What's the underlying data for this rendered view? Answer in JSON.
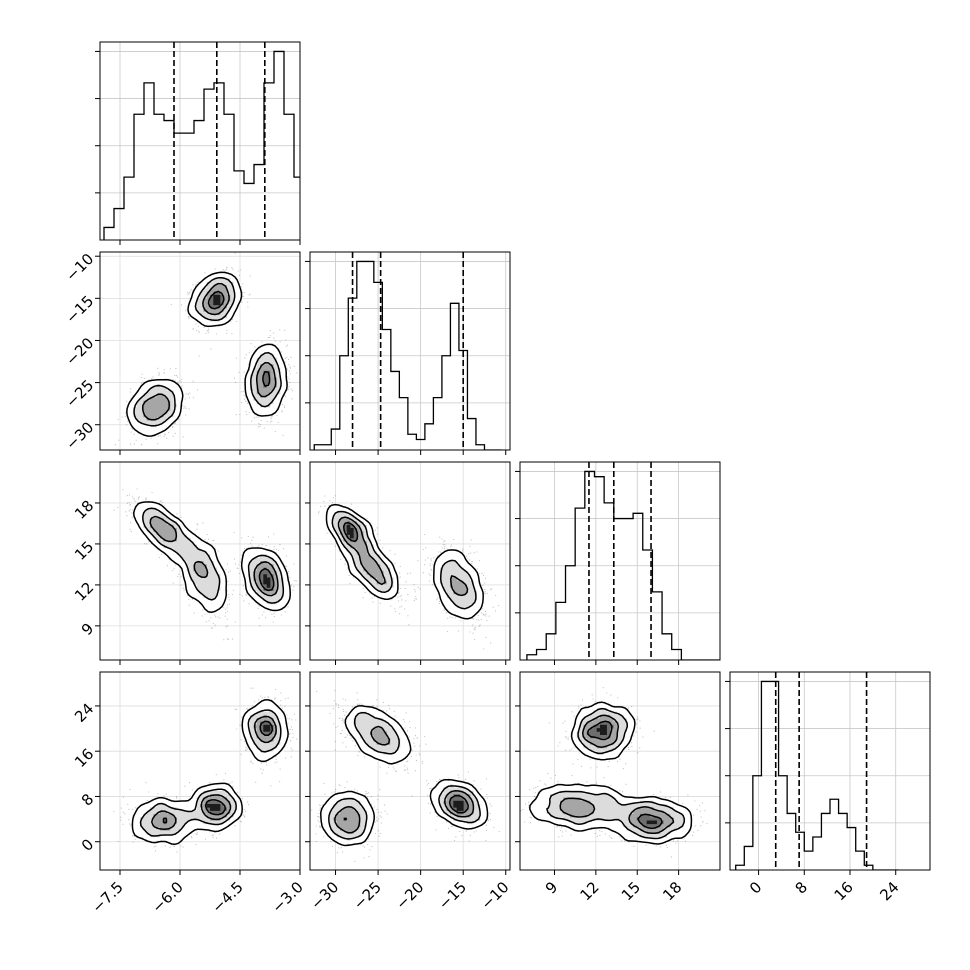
{
  "chart_data": {
    "type": "corner",
    "variables": [
      {
        "range": [
          -8,
          -3
        ],
        "ticks": [
          -7.5,
          -6.0,
          -4.5,
          -3.0
        ],
        "tick_labels": [
          "−7.5",
          "−6.0",
          "−4.5",
          "−3.0"
        ],
        "quantiles": [
          -6.15,
          -5.08,
          -3.88
        ]
      },
      {
        "range": [
          -33,
          -9.5
        ],
        "ticks": [
          -30,
          -25,
          -20,
          -15,
          -10
        ],
        "tick_labels": [
          "−30",
          "−25",
          "−20",
          "−15",
          "−10"
        ],
        "quantiles": [
          -28.0,
          -24.7,
          -15.0
        ]
      },
      {
        "range": [
          6.5,
          21
        ],
        "ticks": [
          9,
          12,
          15,
          18
        ],
        "tick_labels": [
          "9",
          "12",
          "15",
          "18"
        ],
        "quantiles": [
          11.5,
          13.3,
          16.0
        ]
      },
      {
        "range": [
          -5,
          30
        ],
        "ticks": [
          0,
          8,
          16,
          24
        ],
        "tick_labels": [
          "0",
          "8",
          "16",
          "24"
        ],
        "quantiles": [
          3.0,
          7.1,
          18.9
        ]
      }
    ],
    "histograms": [
      {
        "edges_start": -7.9,
        "bin_width": 0.25,
        "heights": [
          2,
          5,
          10,
          20,
          25,
          20,
          19,
          17,
          17,
          19,
          24,
          25,
          20,
          11,
          9,
          12,
          25,
          30,
          20,
          10,
          3,
          0
        ]
      },
      {
        "edges_start": -32.5,
        "bin_width": 1.0,
        "heights": [
          1,
          1,
          4,
          18,
          29,
          36,
          36,
          32,
          23,
          15,
          10,
          3,
          2,
          5,
          10,
          18,
          28,
          19,
          6,
          1,
          0,
          0
        ]
      },
      {
        "edges_start": 7.0,
        "bin_width": 0.7,
        "heights": [
          1,
          2,
          5,
          11,
          18,
          29,
          36,
          35,
          30,
          27,
          27,
          28,
          21,
          13,
          5,
          2,
          0,
          0,
          0,
          0
        ]
      },
      {
        "edges_start": -4.0,
        "bin_width": 1.5,
        "heights": [
          1,
          5,
          20,
          40,
          40,
          20,
          12,
          8,
          4,
          7,
          12,
          15,
          12,
          9,
          4,
          1,
          0,
          0,
          0
        ]
      }
    ],
    "joint": [
      {
        "row": 1,
        "col": 0,
        "clusters": [
          {
            "mx": -5.1,
            "my": -15.2,
            "sx": 0.28,
            "sy": 1.5,
            "rho": 0.2,
            "n": 1000
          },
          {
            "mx": -6.6,
            "my": -27.8,
            "sx": 0.32,
            "sy": 1.6,
            "rho": 0.25,
            "n": 1000
          },
          {
            "mx": -3.85,
            "my": -24.8,
            "sx": 0.25,
            "sy": 2.0,
            "rho": 0.1,
            "n": 1000
          }
        ]
      },
      {
        "row": 2,
        "col": 0,
        "clusters": [
          {
            "mx": -6.4,
            "my": 16.0,
            "sx": 0.35,
            "sy": 1.0,
            "rho": -0.7,
            "n": 750
          },
          {
            "mx": -5.4,
            "my": 12.7,
            "sx": 0.3,
            "sy": 1.4,
            "rho": -0.5,
            "n": 750
          },
          {
            "mx": -3.85,
            "my": 12.5,
            "sx": 0.25,
            "sy": 1.1,
            "rho": -0.3,
            "n": 900
          }
        ]
      },
      {
        "row": 2,
        "col": 1,
        "clusters": [
          {
            "mx": -28.2,
            "my": 15.9,
            "sx": 1.3,
            "sy": 0.9,
            "rho": -0.6,
            "n": 750
          },
          {
            "mx": -25.5,
            "my": 13.0,
            "sx": 1.5,
            "sy": 1.0,
            "rho": -0.6,
            "n": 750
          },
          {
            "mx": -15.5,
            "my": 12.0,
            "sx": 1.5,
            "sy": 1.3,
            "rho": -0.4,
            "n": 900
          }
        ]
      },
      {
        "row": 3,
        "col": 0,
        "clusters": [
          {
            "mx": -6.4,
            "my": 3.5,
            "sx": 0.4,
            "sy": 1.8,
            "rho": 0.0,
            "n": 800
          },
          {
            "mx": -5.1,
            "my": 6.2,
            "sx": 0.28,
            "sy": 1.8,
            "rho": 0.0,
            "n": 800
          },
          {
            "mx": -3.85,
            "my": 19.8,
            "sx": 0.25,
            "sy": 2.5,
            "rho": 0.0,
            "n": 800
          }
        ]
      },
      {
        "row": 3,
        "col": 1,
        "clusters": [
          {
            "mx": -28.5,
            "my": 4.0,
            "sx": 1.5,
            "sy": 2.2,
            "rho": 0.0,
            "n": 800
          },
          {
            "mx": -25.0,
            "my": 19.0,
            "sx": 2.0,
            "sy": 2.5,
            "rho": -0.5,
            "n": 800
          },
          {
            "mx": -15.5,
            "my": 6.5,
            "sx": 1.5,
            "sy": 2.0,
            "rho": -0.3,
            "n": 800
          }
        ]
      },
      {
        "row": 3,
        "col": 2,
        "clusters": [
          {
            "mx": 12.5,
            "my": 19.5,
            "sx": 1.1,
            "sy": 2.3,
            "rho": 0.1,
            "n": 800
          },
          {
            "mx": 10.8,
            "my": 6.2,
            "sx": 1.8,
            "sy": 1.8,
            "rho": 0.0,
            "n": 800
          },
          {
            "mx": 16.0,
            "my": 3.8,
            "sx": 1.4,
            "sy": 1.8,
            "rho": 0.0,
            "n": 800
          }
        ]
      }
    ],
    "grid": true,
    "hist_color": "#000000",
    "contour_color": "#000000",
    "quantile_line_style": "dashed"
  }
}
